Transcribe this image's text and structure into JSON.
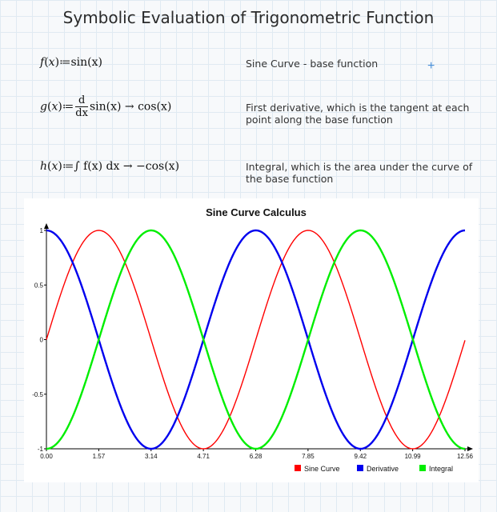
{
  "header": {
    "title": "Symbolic Evaluation of Trigonometric Function"
  },
  "definitions": [
    {
      "lhs": "f",
      "rhs": "sin(x)",
      "description": "Sine Curve - base function"
    },
    {
      "lhs": "g",
      "derivative_num": "d",
      "derivative_den": "dx",
      "rhs": "sin(x) → cos(x)",
      "description": "First derivative, which is the tangent at each point along the base function"
    },
    {
      "lhs": "h",
      "rhs": "∫ f(x) dx → −cos(x)",
      "description": "Integral, which is the area under the curve of the base function"
    }
  ],
  "chart_data": {
    "type": "line",
    "title": "Sine Curve Calculus",
    "xlabel": "",
    "ylabel": "",
    "xlim": [
      0,
      12.56
    ],
    "ylim": [
      -1,
      1
    ],
    "x_ticks": [
      "0.00",
      "1.57",
      "3.14",
      "4.71",
      "6.28",
      "7.85",
      "9.42",
      "10.99",
      "12.56"
    ],
    "y_ticks": [
      "1",
      "0.5",
      "0",
      "-0.5",
      "-1"
    ],
    "legend_position": "bottom-right",
    "grid": false,
    "series": [
      {
        "name": "Sine Curve",
        "function": "sin(x)",
        "color": "#ff0000"
      },
      {
        "name": "Derivative",
        "function": "cos(x)",
        "color": "#0000ee"
      },
      {
        "name": "Integral",
        "function": "-cos(x)",
        "color": "#00ee00"
      }
    ]
  }
}
